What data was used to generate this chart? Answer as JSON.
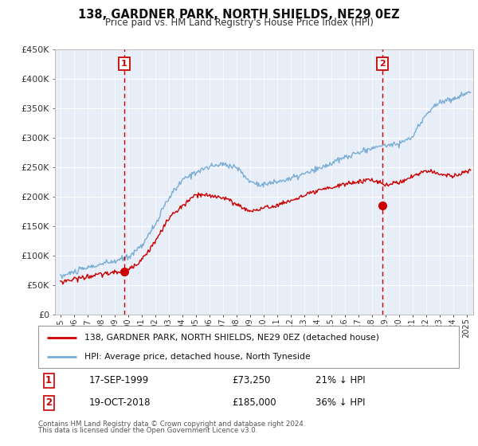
{
  "title": "138, GARDNER PARK, NORTH SHIELDS, NE29 0EZ",
  "subtitle": "Price paid vs. HM Land Registry's House Price Index (HPI)",
  "legend_line1": "138, GARDNER PARK, NORTH SHIELDS, NE29 0EZ (detached house)",
  "legend_line2": "HPI: Average price, detached house, North Tyneside",
  "footer1": "Contains HM Land Registry data © Crown copyright and database right 2024.",
  "footer2": "This data is licensed under the Open Government Licence v3.0.",
  "sale1_date": "17-SEP-1999",
  "sale1_price": "£73,250",
  "sale1_hpi": "21% ↓ HPI",
  "sale1_year": 1999.72,
  "sale1_value": 73250,
  "sale2_date": "19-OCT-2018",
  "sale2_price": "£185,000",
  "sale2_hpi": "36% ↓ HPI",
  "sale2_year": 2018.8,
  "sale2_value": 185000,
  "line_color_property": "#cc0000",
  "line_color_hpi": "#7aadd4",
  "plot_bg_color": "#e8eef8",
  "vline_color": "#cc0000",
  "ylim": [
    0,
    450000
  ],
  "xlim_start": 1994.6,
  "xlim_end": 2025.5
}
